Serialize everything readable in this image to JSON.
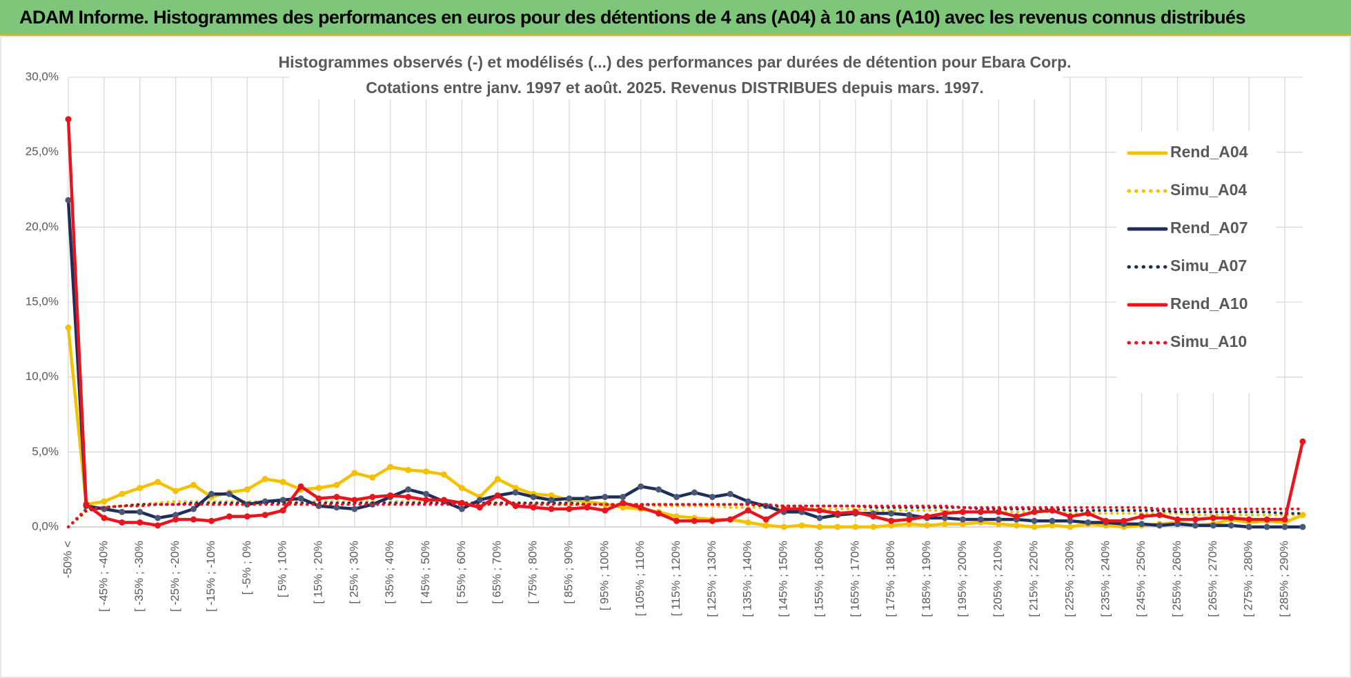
{
  "header": {
    "title": "ADAM Informe. Histogrammes des performances en euros pour des détentions de 4 ans (A04) à 10 ans (A10) avec les revenus connus distribués"
  },
  "chart_data": {
    "type": "line",
    "title": [
      "Histogrammes observés (-) et modélisés (...) des performances par durées de détention pour Ebara Corp.",
      "Cotations entre janv. 1997 et août. 2025. Revenus DISTRIBUES depuis mars. 1997."
    ],
    "categories": [
      "-50% <",
      null,
      "[ -45% ; -40%",
      null,
      "[ -35% ; -30%",
      null,
      "[ -25% ; -20%",
      null,
      "[ -15% ; -10%",
      null,
      "[ -5% ; 0%",
      null,
      "[ 5% ; 10%",
      null,
      "[ 15% ; 20%",
      null,
      "[ 25% ; 30%",
      null,
      "[ 35% ; 40%",
      null,
      "[ 45% ; 50%",
      null,
      "[ 55% ; 60%",
      null,
      "[ 65% ; 70%",
      null,
      "[ 75% ; 80%",
      null,
      "[ 85% ; 90%",
      null,
      "[ 95% ; 100%",
      null,
      "[ 105% ; 110%",
      null,
      "[ 115% ; 120%",
      null,
      "[ 125% ; 130%",
      null,
      "[ 135% ; 140%",
      null,
      "[ 145% ; 150%",
      null,
      "[ 155% ; 160%",
      null,
      "[ 165% ; 170%",
      null,
      "[ 175% ; 180%",
      null,
      "[ 185% ; 190%",
      null,
      "[ 195% ; 200%",
      null,
      "[ 205% ; 210%",
      null,
      "[ 215% ; 220%",
      null,
      "[ 225% ; 230%",
      null,
      "[ 235% ; 240%",
      null,
      "[ 245% ; 250%",
      null,
      "[ 255% ; 260%",
      null,
      "[ 265% ; 270%",
      null,
      "[ 275% ; 280%",
      null,
      "[ 285% ; 290%",
      null
    ],
    "series": [
      {
        "name": "Rend_A04",
        "color": "#f5c000",
        "style": "solid",
        "markers": true,
        "values": [
          13.3,
          1.5,
          1.7,
          2.2,
          2.6,
          3.0,
          2.4,
          2.8,
          2.0,
          2.3,
          2.5,
          3.2,
          3.0,
          2.5,
          2.6,
          2.8,
          3.6,
          3.3,
          4.0,
          3.8,
          3.7,
          3.5,
          2.6,
          2.0,
          3.2,
          2.6,
          2.2,
          2.1,
          1.8,
          1.7,
          1.5,
          1.3,
          1.2,
          1.0,
          0.7,
          0.6,
          0.5,
          0.5,
          0.3,
          0.1,
          0.0,
          0.1,
          0.0,
          0.0,
          0.0,
          0.0,
          0.1,
          0.2,
          0.1,
          0.2,
          0.2,
          0.3,
          0.2,
          0.1,
          0.0,
          0.1,
          0.0,
          0.2,
          0.1,
          0.0,
          0.1,
          0.2,
          0.3,
          0.1,
          0.2,
          0.5,
          0.3,
          0.4,
          0.3,
          0.8
        ]
      },
      {
        "name": "Simu_A04",
        "color": "#f5c000",
        "style": "dotted",
        "markers": false,
        "values": [
          0.0,
          1.0,
          1.3,
          1.4,
          1.5,
          1.6,
          1.7,
          1.7,
          1.7,
          1.7,
          1.7,
          1.7,
          1.7,
          1.7,
          1.7,
          1.7,
          1.7,
          1.7,
          1.7,
          1.7,
          1.7,
          1.7,
          1.6,
          1.6,
          1.6,
          1.6,
          1.6,
          1.6,
          1.5,
          1.5,
          1.5,
          1.5,
          1.5,
          1.4,
          1.4,
          1.4,
          1.4,
          1.3,
          1.3,
          1.3,
          1.3,
          1.2,
          1.2,
          1.2,
          1.2,
          1.1,
          1.1,
          1.1,
          1.1,
          1.1,
          1.0,
          1.0,
          1.0,
          1.0,
          1.0,
          1.0,
          0.9,
          0.9,
          0.9,
          0.9,
          0.9,
          0.9,
          0.9,
          0.8,
          0.8,
          0.8,
          0.8,
          0.8,
          0.8,
          0.8
        ]
      },
      {
        "name": "Rend_A07",
        "color": "#1f2d5a",
        "style": "solid",
        "markers": true,
        "values": [
          21.8,
          1.4,
          1.2,
          1.0,
          1.0,
          0.6,
          0.8,
          1.2,
          2.2,
          2.2,
          1.5,
          1.7,
          1.8,
          1.9,
          1.4,
          1.3,
          1.2,
          1.5,
          2.0,
          2.5,
          2.2,
          1.7,
          1.2,
          1.8,
          2.1,
          2.3,
          2.0,
          1.8,
          1.9,
          1.9,
          2.0,
          2.0,
          2.7,
          2.5,
          2.0,
          2.3,
          2.0,
          2.2,
          1.7,
          1.4,
          1.0,
          1.0,
          0.6,
          0.8,
          0.9,
          0.9,
          0.9,
          0.8,
          0.6,
          0.6,
          0.5,
          0.5,
          0.5,
          0.5,
          0.4,
          0.4,
          0.4,
          0.3,
          0.3,
          0.2,
          0.2,
          0.1,
          0.2,
          0.1,
          0.1,
          0.1,
          0.0,
          0.0,
          0.0,
          0.0
        ]
      },
      {
        "name": "Simu_A07",
        "color": "#1f2d5a",
        "style": "dotted",
        "markers": false,
        "values": [
          0.0,
          1.1,
          1.3,
          1.4,
          1.5,
          1.5,
          1.5,
          1.6,
          1.6,
          1.6,
          1.6,
          1.6,
          1.6,
          1.6,
          1.6,
          1.6,
          1.6,
          1.6,
          1.6,
          1.6,
          1.6,
          1.6,
          1.6,
          1.6,
          1.6,
          1.6,
          1.6,
          1.6,
          1.6,
          1.5,
          1.5,
          1.5,
          1.5,
          1.5,
          1.5,
          1.5,
          1.5,
          1.5,
          1.5,
          1.4,
          1.4,
          1.4,
          1.4,
          1.4,
          1.4,
          1.3,
          1.3,
          1.3,
          1.3,
          1.3,
          1.3,
          1.2,
          1.2,
          1.2,
          1.2,
          1.2,
          1.1,
          1.1,
          1.1,
          1.1,
          1.1,
          1.1,
          1.0,
          1.0,
          1.0,
          1.0,
          1.0,
          1.0,
          0.9,
          0.9
        ]
      },
      {
        "name": "Rend_A10",
        "color": "#e8141e",
        "style": "solid",
        "markers": true,
        "values": [
          27.2,
          1.5,
          0.6,
          0.3,
          0.3,
          0.1,
          0.5,
          0.5,
          0.4,
          0.7,
          0.7,
          0.8,
          1.1,
          2.7,
          1.9,
          2.0,
          1.8,
          2.0,
          2.1,
          2.0,
          1.8,
          1.8,
          1.6,
          1.3,
          2.1,
          1.4,
          1.3,
          1.2,
          1.2,
          1.3,
          1.1,
          1.6,
          1.3,
          0.9,
          0.4,
          0.4,
          0.4,
          0.5,
          1.1,
          0.5,
          1.2,
          1.2,
          1.1,
          0.9,
          1.0,
          0.7,
          0.4,
          0.5,
          0.7,
          0.9,
          1.0,
          1.0,
          1.0,
          0.7,
          1.0,
          1.1,
          0.7,
          0.9,
          0.4,
          0.4,
          0.7,
          0.8,
          0.5,
          0.5,
          0.6,
          0.6,
          0.5,
          0.5,
          0.5,
          5.7
        ]
      },
      {
        "name": "Simu_A10",
        "color": "#e8141e",
        "style": "dotted",
        "markers": false,
        "values": [
          0.0,
          1.2,
          1.3,
          1.4,
          1.4,
          1.5,
          1.5,
          1.5,
          1.5,
          1.5,
          1.5,
          1.5,
          1.5,
          1.5,
          1.5,
          1.5,
          1.5,
          1.5,
          1.5,
          1.5,
          1.5,
          1.5,
          1.5,
          1.5,
          1.5,
          1.5,
          1.5,
          1.5,
          1.5,
          1.5,
          1.5,
          1.5,
          1.5,
          1.5,
          1.5,
          1.5,
          1.5,
          1.5,
          1.5,
          1.5,
          1.4,
          1.4,
          1.4,
          1.4,
          1.4,
          1.4,
          1.4,
          1.4,
          1.4,
          1.4,
          1.3,
          1.3,
          1.3,
          1.3,
          1.3,
          1.3,
          1.3,
          1.3,
          1.3,
          1.3,
          1.3,
          1.2,
          1.2,
          1.2,
          1.2,
          1.2,
          1.2,
          1.2,
          1.2,
          1.2
        ]
      }
    ],
    "ylim": [
      0,
      30
    ],
    "yticks": [
      {
        "value": 0,
        "label": "0,0%"
      },
      {
        "value": 5,
        "label": "5,0%"
      },
      {
        "value": 10,
        "label": "10,0%"
      },
      {
        "value": 15,
        "label": "15,0%"
      },
      {
        "value": 20,
        "label": "20,0%"
      },
      {
        "value": 25,
        "label": "25,0%"
      },
      {
        "value": 30,
        "label": "30,0%"
      }
    ],
    "grid": true,
    "legend": "right"
  }
}
